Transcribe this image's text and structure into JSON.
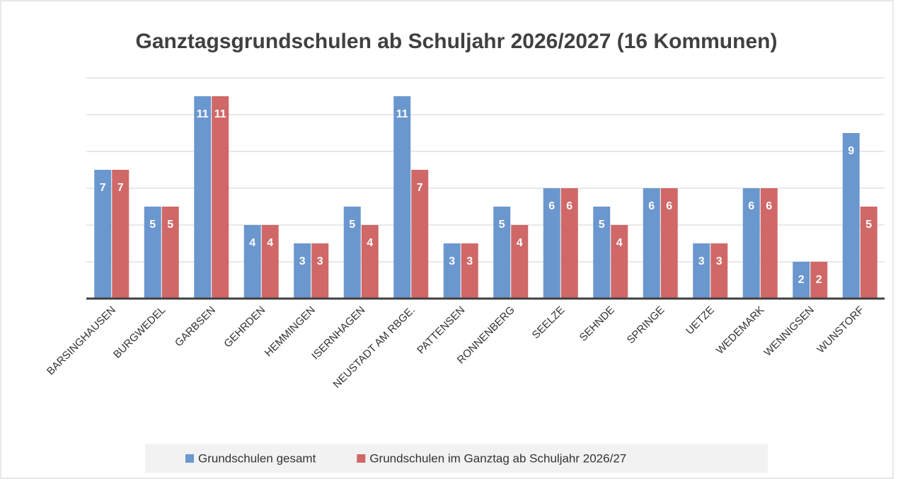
{
  "chart_data": {
    "type": "bar",
    "title": "Ganztagsgrundschulen ab Schuljahr 2026/2027 (16 Kommunen)",
    "categories": [
      "BARSINGHAUSEN",
      "BURGWEDEL",
      "GARBSEN",
      "GEHRDEN",
      "HEMMINGEN",
      "ISERNHAGEN",
      "NEUSTADT AM RBGE.",
      "PATTENSEN",
      "RONNENBERG",
      "SEELZE",
      "SEHNDE",
      "SPRINGE",
      "UETZE",
      "WEDEMARK",
      "WENNIGSEN",
      "WUNSTORF"
    ],
    "series": [
      {
        "name": "Grundschulen gesamt",
        "color": "#6b97cf",
        "values": [
          7,
          5,
          11,
          4,
          3,
          5,
          11,
          3,
          5,
          6,
          5,
          6,
          3,
          6,
          2,
          9
        ]
      },
      {
        "name": "Grundschulen im Ganztag ab Schuljahr 2026/27",
        "color": "#d06868",
        "values": [
          7,
          5,
          11,
          4,
          3,
          4,
          7,
          3,
          4,
          6,
          4,
          6,
          3,
          6,
          2,
          5
        ]
      }
    ],
    "ylim": [
      0,
      12
    ],
    "yticks": [
      0,
      2,
      4,
      6,
      8,
      10,
      12
    ],
    "grid": true,
    "legend": "bottom"
  }
}
